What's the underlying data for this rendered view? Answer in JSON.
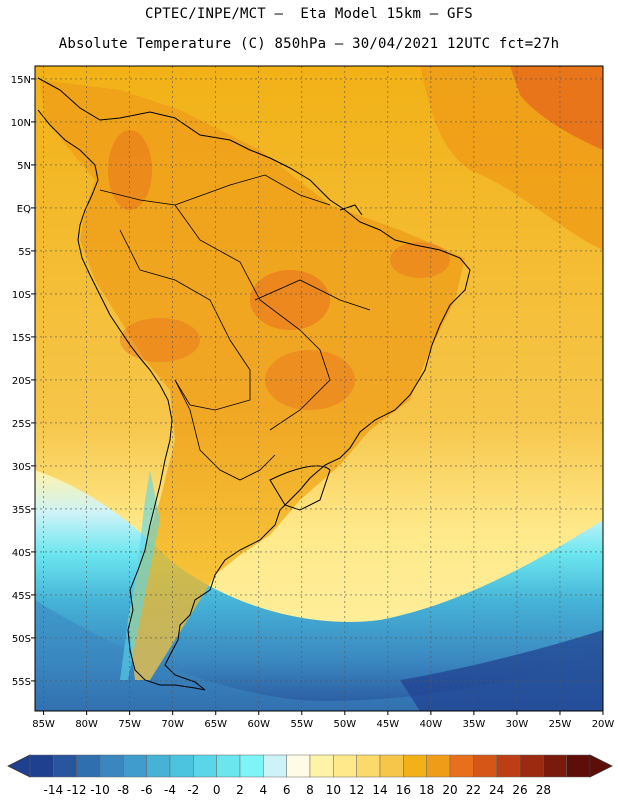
{
  "title": {
    "line1": "CPTEC/INPE/MCT –  Eta Model 15km – GFS",
    "line2": "Absolute Temperature (C) 850hPa – 30/04/2021 12UTC fct=27h"
  },
  "axes": {
    "lat_labels": [
      "15N",
      "10N",
      "5N",
      "EQ",
      "5S",
      "10S",
      "15S",
      "20S",
      "25S",
      "30S",
      "35S",
      "40S",
      "45S",
      "50S",
      "55S"
    ],
    "lon_labels": [
      "85W",
      "80W",
      "75W",
      "70W",
      "65W",
      "60W",
      "55W",
      "50W",
      "45W",
      "40W",
      "35W",
      "30W",
      "25W",
      "20W"
    ],
    "lat_values": [
      15,
      10,
      5,
      0,
      -5,
      -10,
      -15,
      -20,
      -25,
      -30,
      -35,
      -40,
      -45,
      -50,
      -55
    ],
    "lon_values": [
      -85,
      -80,
      -75,
      -70,
      -65,
      -60,
      -55,
      -50,
      -45,
      -40,
      -35,
      -30,
      -25,
      -20
    ],
    "lat_range": [
      -58.5,
      16.5
    ],
    "lon_range": [
      -86,
      -20
    ]
  },
  "colorbar": {
    "labels": [
      "-14",
      "-12",
      "-10",
      "-8",
      "-6",
      "-4",
      "-2",
      "0",
      "2",
      "4",
      "6",
      "8",
      "10",
      "12",
      "14",
      "16",
      "18",
      "20",
      "22",
      "24",
      "26",
      "28"
    ],
    "colors": [
      "#1f3f8f",
      "#29559f",
      "#2f6fb0",
      "#3a86bf",
      "#3f9ccc",
      "#45b2d6",
      "#4cc4df",
      "#5bd6e8",
      "#6be6ef",
      "#7ff4f6",
      "#cdf3f8",
      "#fffbe6",
      "#fff3a8",
      "#ffe98a",
      "#fbd96a",
      "#f6c64a",
      "#f2b116",
      "#ef9d18",
      "#e8701c",
      "#d65618",
      "#bd3e14",
      "#9c2a10",
      "#7a1a0c",
      "#5f0d08"
    ]
  },
  "map": {
    "variable": "850hPa absolute temperature",
    "units": "C"
  }
}
